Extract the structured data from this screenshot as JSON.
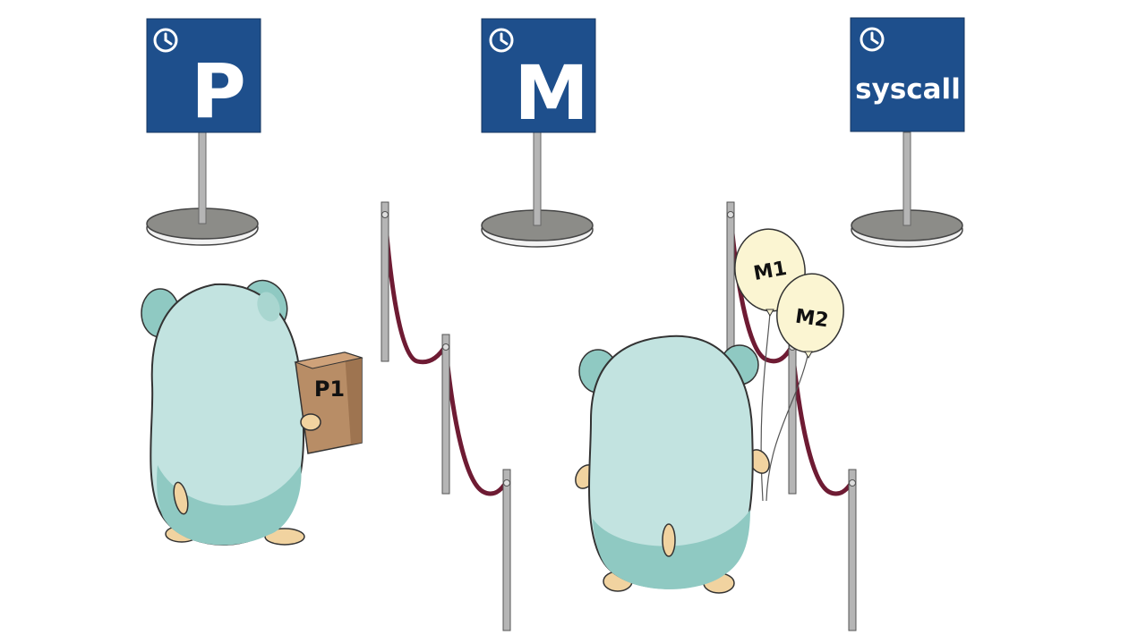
{
  "signs": [
    {
      "label": "P"
    },
    {
      "label": "M"
    },
    {
      "label": "syscall"
    }
  ],
  "box_label": "P1",
  "balloons": [
    {
      "label": "M1"
    },
    {
      "label": "M2"
    }
  ],
  "colors": {
    "sign_blue": "#1e4f8c",
    "gopher_body": "#c2e3e0",
    "gopher_shade": "#8fc9c2",
    "paw": "#f1d3a0",
    "box": "#b88d66",
    "box_dark": "#9e7450",
    "balloon": "#fbf5d2",
    "rope": "#6e1b33",
    "pole": "#b5b5b5",
    "base": "#8c8c88"
  }
}
